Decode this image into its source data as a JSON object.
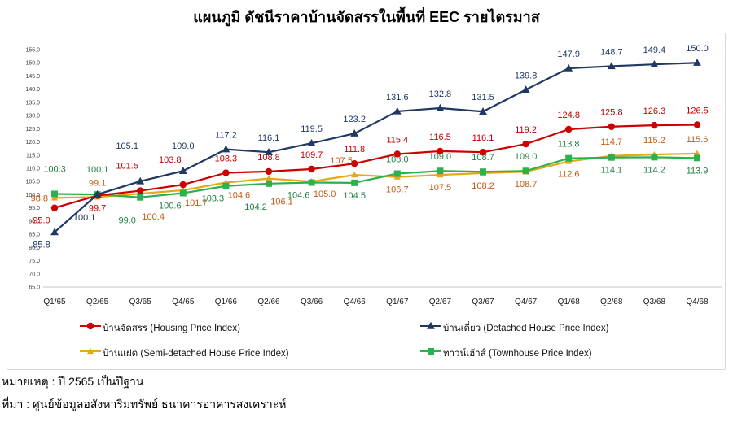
{
  "title": "แผนภูมิ ดัชนีราคาบ้านจัดสรรในพื้นที่ EEC รายไตรมาส",
  "notes": {
    "note": "หมายเหตุ : ปี 2565 เป็นปีฐาน",
    "source": "ที่มา : ศูนย์ข้อมูลอสังหาริมทรัพย์ ธนาคารอาคารสงเคราะห์"
  },
  "chart_data": {
    "type": "line",
    "title": "แผนภูมิ ดัชนีราคาบ้านจัดสรรในพื้นที่ EEC รายไตรมาส",
    "categories": [
      "Q1/65",
      "Q2/65",
      "Q3/65",
      "Q4/65",
      "Q1/66",
      "Q2/66",
      "Q3/66",
      "Q4/66",
      "Q1/67",
      "Q2/67",
      "Q3/67",
      "Q4/67",
      "Q1/68",
      "Q2/68",
      "Q3/68",
      "Q4/68"
    ],
    "ylim": [
      65,
      155
    ],
    "ytick_step": 5,
    "grid": false,
    "legend_position": "bottom",
    "series": [
      {
        "key": "housing",
        "name": "บ้านจัดสรร (Housing Price Index)",
        "marker": "circle",
        "color": "#CC0000",
        "label_color": "#C00000",
        "values": [
          95.0,
          99.7,
          101.5,
          103.8,
          108.3,
          108.8,
          109.7,
          111.8,
          115.4,
          116.5,
          116.1,
          119.2,
          124.8,
          125.8,
          126.3,
          126.5
        ],
        "label_pos": [
          "b-",
          "b",
          "a2-",
          "a2-",
          "a",
          "a",
          "a",
          "a",
          "a",
          "a",
          "a",
          "a",
          "a",
          "a",
          "a",
          "a"
        ]
      },
      {
        "key": "detached",
        "name": "บ้านเดี่ยว (Detached House Price Index)",
        "marker": "triangle",
        "color": "#1F3864",
        "label_color": "#1F3864",
        "values": [
          85.8,
          100.1,
          105.1,
          109.0,
          117.2,
          116.1,
          119.5,
          123.2,
          131.6,
          132.8,
          131.5,
          139.8,
          147.9,
          148.7,
          149.4,
          150.0
        ],
        "label_pos": [
          "b-",
          "b2-",
          "a3-",
          "a2",
          "a",
          "a",
          "a",
          "a",
          "a",
          "a",
          "a",
          "a",
          "a",
          "a",
          "a",
          "a"
        ]
      },
      {
        "key": "semi_detached",
        "name": "บ้านแฝด (Semi-detached House Price Index)",
        "marker": "triangle-small",
        "color": "#E6A817",
        "label_color": "#C55A11",
        "values": [
          98.8,
          99.1,
          100.4,
          101.7,
          104.6,
          106.1,
          105.0,
          107.5,
          106.7,
          107.5,
          108.2,
          108.7,
          112.6,
          114.7,
          115.2,
          115.6
        ],
        "label_pos": [
          "l",
          "a",
          "b2+",
          "b+",
          "b+",
          "b2+",
          "b+",
          "a-",
          "b",
          "b",
          "b",
          "b",
          "b",
          "a",
          "a",
          "a"
        ]
      },
      {
        "key": "townhouse",
        "name": "ทาวน์เฮ้าส์ (Townhouse Price Index)",
        "marker": "square",
        "color": "#2CB14F",
        "label_color": "#1E8243",
        "values": [
          100.3,
          100.1,
          99.0,
          100.6,
          103.3,
          104.2,
          104.6,
          104.5,
          108.0,
          109.0,
          108.7,
          109.0,
          113.8,
          114.1,
          114.2,
          113.9
        ],
        "label_pos": [
          "a2",
          "a2",
          "b2-",
          "b-",
          "b-",
          "b2-",
          "b-",
          "b",
          "a",
          "a",
          "a",
          "a",
          "a",
          "b",
          "b",
          "b"
        ]
      }
    ]
  }
}
